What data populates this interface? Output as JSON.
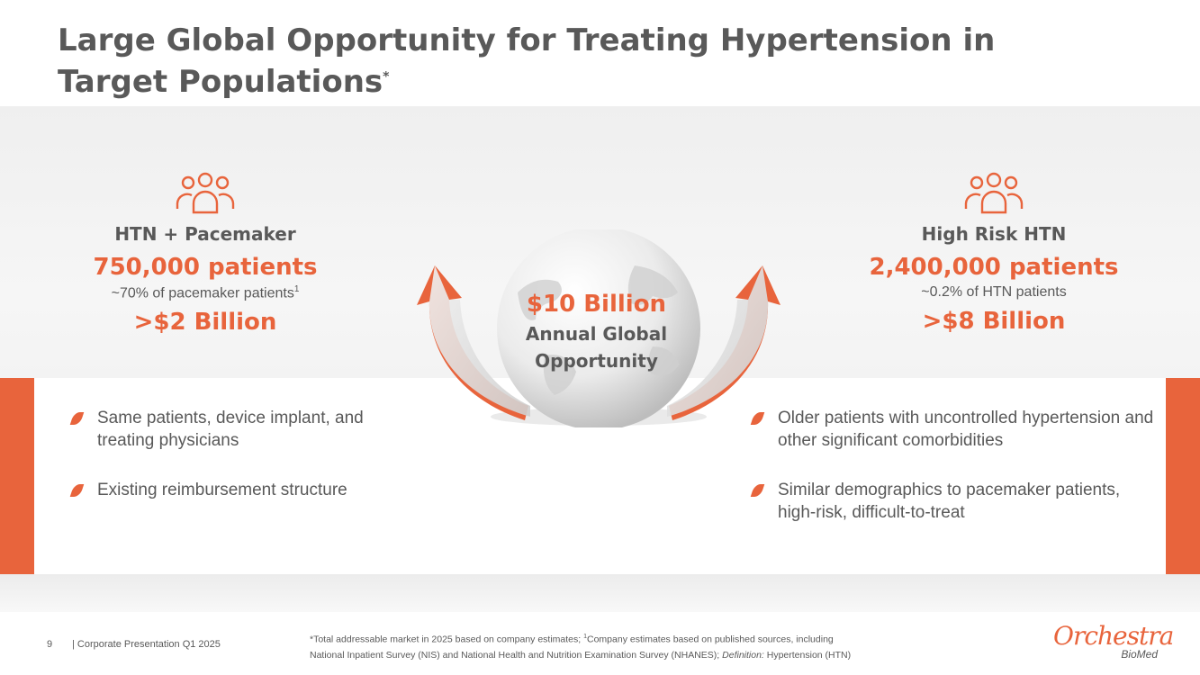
{
  "title": {
    "line1": "Large Global Opportunity for Treating Hypertension in",
    "line2": "Target Populations",
    "mark": "*"
  },
  "left": {
    "icon": "people-group-icon",
    "label": "HTN + Pacemaker",
    "patients": "750,000 patients",
    "sub": "~70% of pacemaker patients",
    "sub_sup": "1",
    "market": ">$2 Billion",
    "bullets": [
      "Same patients, device implant, and treating physicians",
      "Existing reimbursement structure"
    ]
  },
  "right": {
    "icon": "people-group-icon",
    "label": "High Risk HTN",
    "patients": "2,400,000 patients",
    "sub": "~0.2% of HTN patients",
    "market": ">$8 Billion",
    "bullets": [
      "Older patients with uncontrolled hypertension and other significant comorbidities",
      "Similar demographics to pacemaker patients, high-risk, difficult-to-treat"
    ]
  },
  "center": {
    "amount": "$10 Billion",
    "line1": "Annual Global",
    "line2": "Opportunity"
  },
  "footer": {
    "page": "9",
    "doc": "| Corporate Presentation Q1 2025",
    "note_a": "*Total addressable market in 2025 based on company estimates; ",
    "note_sup": "1",
    "note_b": "Company estimates based on published sources, including",
    "note_c": "National Inpatient Survey (NIS) and National Health and Nutrition Examination Survey (NHANES); ",
    "note_def": "Definition:",
    "note_d": " Hypertension (HTN)"
  },
  "logo": {
    "name": "Orchestra",
    "sub": "BioMed"
  },
  "colors": {
    "accent": "#e8643c",
    "text": "#595959",
    "band": "#efefef"
  }
}
